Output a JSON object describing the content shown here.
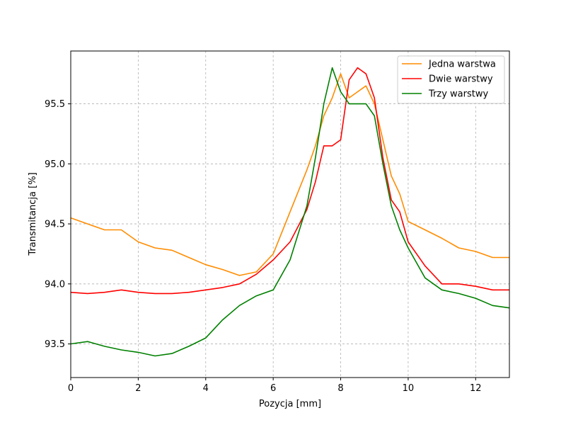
{
  "chart_data": {
    "type": "line",
    "title": "",
    "xlabel": "Pozycja [mm]",
    "ylabel": "Transmitancja [%]",
    "xlim": [
      0,
      13
    ],
    "ylim": [
      93.22,
      95.94
    ],
    "xticks": [
      0,
      2,
      4,
      6,
      8,
      10,
      12
    ],
    "xtick_labels": [
      "0",
      "2",
      "4",
      "6",
      "8",
      "10",
      "12"
    ],
    "yticks": [
      93.5,
      94.0,
      94.5,
      95.0,
      95.5
    ],
    "ytick_labels": [
      "93.5",
      "94.0",
      "94.5",
      "95.0",
      "95.5"
    ],
    "grid": true,
    "grid_style": "dashed",
    "legend_position": "top-right",
    "x": [
      0.0,
      0.5,
      1.0,
      1.5,
      2.0,
      2.5,
      3.0,
      3.5,
      4.0,
      4.5,
      5.0,
      5.5,
      6.0,
      6.5,
      7.0,
      7.25,
      7.5,
      7.75,
      8.0,
      8.25,
      8.5,
      8.75,
      9.0,
      9.25,
      9.5,
      9.75,
      10.0,
      10.5,
      11.0,
      11.5,
      12.0,
      12.5,
      13.0
    ],
    "series": [
      {
        "name": "Jedna warstwa",
        "color": "#ff8c00",
        "values": [
          94.55,
          94.5,
          94.45,
          94.45,
          94.35,
          94.3,
          94.28,
          94.22,
          94.16,
          94.12,
          94.07,
          94.1,
          94.25,
          94.6,
          94.95,
          95.15,
          95.4,
          95.55,
          95.75,
          95.55,
          95.6,
          95.65,
          95.5,
          95.2,
          94.9,
          94.75,
          94.52,
          94.45,
          94.38,
          94.3,
          94.27,
          94.22,
          94.22
        ]
      },
      {
        "name": "Dwie warstwy",
        "color": "#ff0000",
        "values": [
          93.93,
          93.92,
          93.93,
          93.95,
          93.93,
          93.92,
          93.92,
          93.93,
          93.95,
          93.97,
          94.0,
          94.08,
          94.2,
          94.35,
          94.62,
          94.85,
          95.15,
          95.15,
          95.2,
          95.7,
          95.8,
          95.75,
          95.55,
          95.05,
          94.7,
          94.6,
          94.35,
          94.15,
          94.0,
          94.0,
          93.98,
          93.95,
          93.95
        ]
      },
      {
        "name": "Trzy warstwy",
        "color": "#008000",
        "values": [
          93.5,
          93.52,
          93.48,
          93.45,
          93.43,
          93.4,
          93.42,
          93.48,
          93.55,
          93.7,
          93.82,
          93.9,
          93.95,
          94.2,
          94.65,
          95.05,
          95.5,
          95.8,
          95.6,
          95.5,
          95.5,
          95.5,
          95.4,
          95.0,
          94.65,
          94.45,
          94.3,
          94.05,
          93.95,
          93.92,
          93.88,
          93.82,
          93.8
        ]
      }
    ]
  }
}
